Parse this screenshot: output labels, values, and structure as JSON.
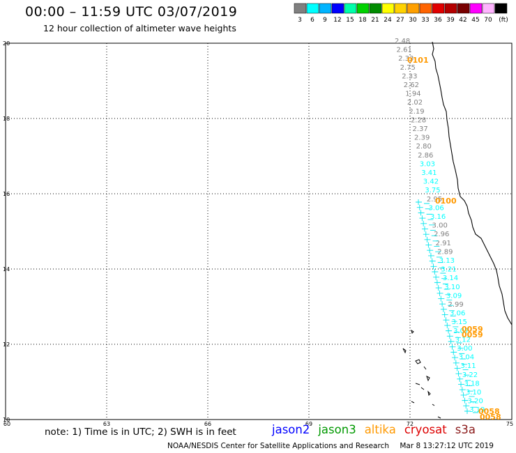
{
  "header": {
    "title": "00:00 – 11:59 UTC 03/07/2019",
    "subtitle": "12 hour collection of altimeter wave heights"
  },
  "colorbar": {
    "swatches": [
      "#808080",
      "#00ffff",
      "#00b4ff",
      "#0000ff",
      "#00ffaa",
      "#00d200",
      "#008c00",
      "#ffff00",
      "#ffd200",
      "#ffa000",
      "#ff6400",
      "#e10000",
      "#b40000",
      "#780000",
      "#ff00ff",
      "#ffb4ff",
      "#000000"
    ],
    "labels": [
      "3",
      "6",
      "9",
      "12",
      "15",
      "18",
      "21",
      "24",
      "27",
      "30",
      "33",
      "36",
      "39",
      "42",
      "45",
      "70",
      "(ft)"
    ]
  },
  "map": {
    "y_labels": [
      "20",
      "18",
      "16",
      "14",
      "12",
      "10"
    ],
    "x_labels": [
      "60",
      "63",
      "66",
      "69",
      "72",
      "75"
    ],
    "times": [
      {
        "text": "0101",
        "color": "#ff9900"
      },
      {
        "text": "0100",
        "color": "#ff9900"
      },
      {
        "text": "0059",
        "color": "#ff9900"
      },
      {
        "text": "0059",
        "color": "#ff9900"
      },
      {
        "text": "0058",
        "color": "#ff9900"
      },
      {
        "text": "0058",
        "color": "#ff9900"
      }
    ],
    "track_values": [
      "2.48",
      "2.61",
      "2.33",
      "2.75",
      "2.33",
      "2.62",
      "1.94",
      "2.02",
      "2.19",
      "2.28",
      "2.37",
      "2.39",
      "2.80",
      "2.86",
      "3.03",
      "3.41",
      "3.42",
      "3.75",
      "2.95",
      "3.06",
      "3.16",
      "3.00",
      "2.96",
      "2.91",
      "2.89",
      "3.13",
      "3.21",
      "3.14",
      "3.10",
      "3.09",
      "2.99",
      "3.06",
      "3.15",
      "3.07",
      "3.12",
      "3.00",
      "3.04",
      "3.11",
      "3.22",
      "3.18",
      "3.10",
      "3.20",
      "3.19"
    ],
    "track_colors": [
      "#808080",
      "#808080",
      "#808080",
      "#808080",
      "#808080",
      "#808080",
      "#808080",
      "#808080",
      "#808080",
      "#808080",
      "#808080",
      "#808080",
      "#808080",
      "#808080",
      "#00ffff",
      "#00ffff",
      "#00ffff",
      "#00ffff",
      "#808080",
      "#00ffff",
      "#00ffff",
      "#808080",
      "#808080",
      "#808080",
      "#808080",
      "#00ffff",
      "#00ffff",
      "#00ffff",
      "#00ffff",
      "#00ffff",
      "#808080",
      "#00ffff",
      "#00ffff",
      "#00ffff",
      "#00ffff",
      "#00ffff",
      "#00ffff",
      "#00ffff",
      "#00ffff",
      "#00ffff",
      "#00ffff",
      "#00ffff",
      "#00ffff"
    ]
  },
  "footer": {
    "note": "note: 1) Time is in UTC; 2) SWH is in feet",
    "satellites": [
      {
        "name": "jason2",
        "color": "#0000ff"
      },
      {
        "name": "jason3",
        "color": "#009900"
      },
      {
        "name": "altika",
        "color": "#ff9900"
      },
      {
        "name": "cryosat",
        "color": "#dd0000"
      },
      {
        "name": "s3a",
        "color": "#8b1a1a"
      }
    ],
    "credit_left": "NOAA/NESDIS Center for Satellite Applications and Research",
    "credit_right": "Mar  8 13:27:12 UTC 2019"
  }
}
